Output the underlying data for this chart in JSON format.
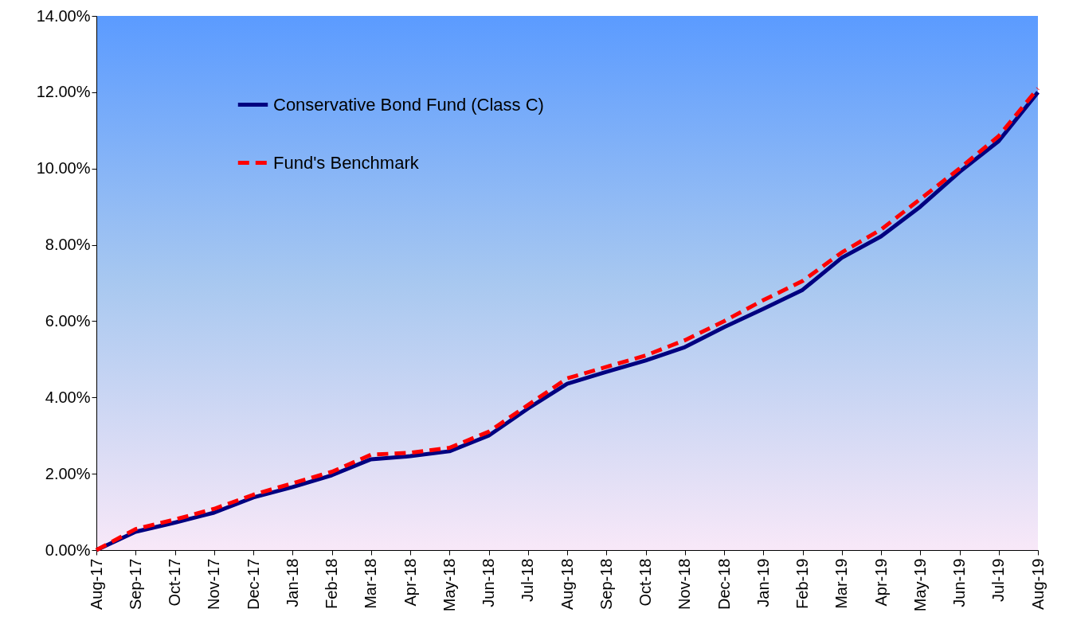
{
  "chart_data": {
    "type": "line",
    "categories": [
      "Aug-17",
      "Sep-17",
      "Oct-17",
      "Nov-17",
      "Dec-17",
      "Jan-18",
      "Feb-18",
      "Mar-18",
      "Apr-18",
      "May-18",
      "Jun-18",
      "Jul-18",
      "Aug-18",
      "Sep-18",
      "Oct-18",
      "Nov-18",
      "Dec-18",
      "Jan-19",
      "Feb-19",
      "Mar-19",
      "Apr-19",
      "May-19",
      "Jun-19",
      "Jul-19",
      "Aug-19"
    ],
    "series": [
      {
        "name": "Conservative Bond Fund (Class C)",
        "color": "#000080",
        "line_style": "solid",
        "values": [
          0,
          0.48,
          0.72,
          0.98,
          1.38,
          1.65,
          1.96,
          2.38,
          2.46,
          2.59,
          3.0,
          3.71,
          4.36,
          4.67,
          4.97,
          5.32,
          5.84,
          6.32,
          6.82,
          7.66,
          8.22,
          9.0,
          9.91,
          10.72,
          12.0
        ]
      },
      {
        "name": "Fund's Benchmark",
        "color": "#ff0000",
        "line_style": "dashed",
        "values": [
          0,
          0.55,
          0.8,
          1.08,
          1.45,
          1.75,
          2.05,
          2.5,
          2.55,
          2.68,
          3.1,
          3.8,
          4.5,
          4.8,
          5.1,
          5.5,
          6.0,
          6.55,
          7.05,
          7.8,
          8.4,
          9.2,
          10.0,
          10.85,
          12.1
        ]
      }
    ],
    "ylim": [
      0,
      14
    ],
    "yticks": [
      {
        "value": 0,
        "label": "0.00%"
      },
      {
        "value": 2,
        "label": "2.00%"
      },
      {
        "value": 4,
        "label": "4.00%"
      },
      {
        "value": 6,
        "label": "6.00%"
      },
      {
        "value": 8,
        "label": "8.00%"
      },
      {
        "value": 10,
        "label": "10.00%"
      },
      {
        "value": 12,
        "label": "12.00%"
      },
      {
        "value": 14,
        "label": "14.00%"
      }
    ],
    "legend": "top left",
    "grid": false
  }
}
